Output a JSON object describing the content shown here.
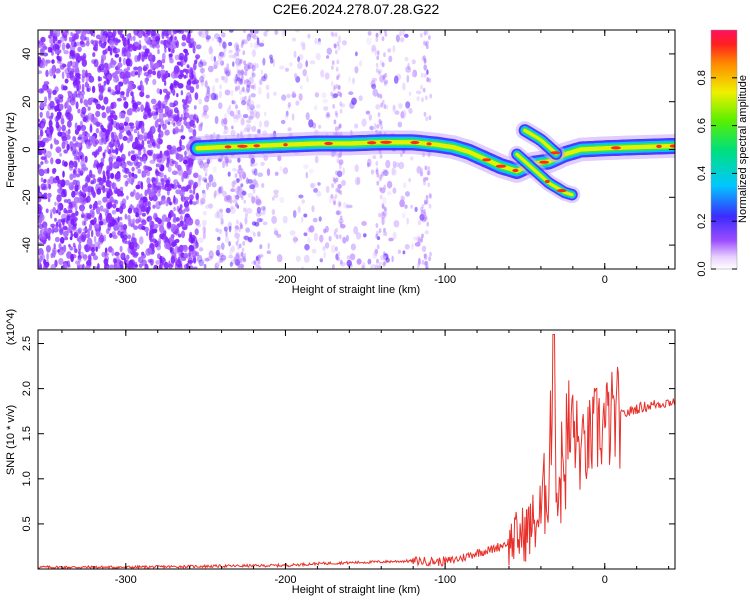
{
  "figure_title": "C2E6.2024.278.07.28.G22",
  "chart_data": [
    {
      "type": "heatmap",
      "title": "",
      "xlabel": "Height of straight line (km)",
      "ylabel": "Frequency (Hz)",
      "xlim": [
        -355,
        44
      ],
      "ylim": [
        -50,
        50
      ],
      "xticks": [
        "-300",
        "-200",
        "-100",
        "0"
      ],
      "xtick_values": [
        -300,
        -200,
        -100,
        0
      ],
      "yticks": [
        "40",
        "20",
        "0",
        "-20",
        "-40"
      ],
      "ytick_values": [
        40,
        20,
        0,
        -20,
        -40
      ],
      "colorbar": {
        "label": "Normalized spectral amplitude",
        "range": [
          0,
          1
        ],
        "ticks": [
          "0.0",
          "0.2",
          "0.4",
          "0.6",
          "0.8"
        ],
        "tick_values": [
          0,
          0.2,
          0.4,
          0.6,
          0.8
        ],
        "colormap": "rainbow"
      },
      "grid": false,
      "main_ridge": {
        "x": [
          -255,
          -240,
          -220,
          -200,
          -180,
          -160,
          -140,
          -120,
          -105,
          -95,
          -85,
          -75,
          -65,
          -55,
          -45,
          -35,
          -25,
          -15,
          0,
          20,
          44
        ],
        "y": [
          0.5,
          1,
          1.5,
          2,
          2.5,
          2.5,
          3,
          3,
          2,
          1,
          -1,
          -4,
          -7,
          -9,
          -6,
          -5,
          -2,
          0,
          0.5,
          1,
          1.5
        ]
      },
      "branch_upper": {
        "x": [
          -50,
          -45,
          -40,
          -35,
          -30
        ],
        "y": [
          8,
          6,
          4,
          1,
          -2
        ]
      },
      "branch_lower": {
        "x": [
          -55,
          -50,
          -45,
          -40,
          -35,
          -30,
          -25,
          -20
        ],
        "y": [
          -2,
          -5,
          -8,
          -11,
          -14,
          -16,
          -18,
          -19
        ]
      }
    },
    {
      "type": "line",
      "title": "",
      "xlabel": "Height of straight line (km)",
      "ylabel": "SNR (10 * v/v)",
      "yscale_label": "(x10^4)",
      "xlim": [
        -355,
        44
      ],
      "ylim": [
        0,
        2.65
      ],
      "xticks": [
        "-300",
        "-200",
        "-100",
        "0"
      ],
      "xtick_values": [
        -300,
        -200,
        -100,
        0
      ],
      "yticks": [
        "0.5",
        "1.0",
        "1.5",
        "2.0",
        "2.5"
      ],
      "ytick_values": [
        0.5,
        1.0,
        1.5,
        2.0,
        2.5
      ],
      "grid": false,
      "color": "#e8302a",
      "series": [
        {
          "x": [
            -355,
            -300,
            -250,
            -200,
            -180,
            -160,
            -140,
            -120,
            -100,
            -90,
            -80,
            -70,
            -60,
            -50,
            -45,
            -40,
            -35,
            -32,
            -30,
            -25,
            -20,
            -15,
            -10,
            -5,
            0,
            10,
            20,
            30,
            40,
            44
          ],
          "y": [
            0.02,
            0.02,
            0.03,
            0.04,
            0.06,
            0.07,
            0.08,
            0.09,
            0.08,
            0.12,
            0.18,
            0.22,
            0.3,
            0.4,
            0.5,
            0.6,
            1.1,
            2.6,
            0.8,
            1.3,
            1.6,
            1.25,
            1.4,
            1.55,
            1.6,
            1.7,
            1.78,
            1.82,
            1.85,
            1.86
          ]
        }
      ]
    }
  ]
}
